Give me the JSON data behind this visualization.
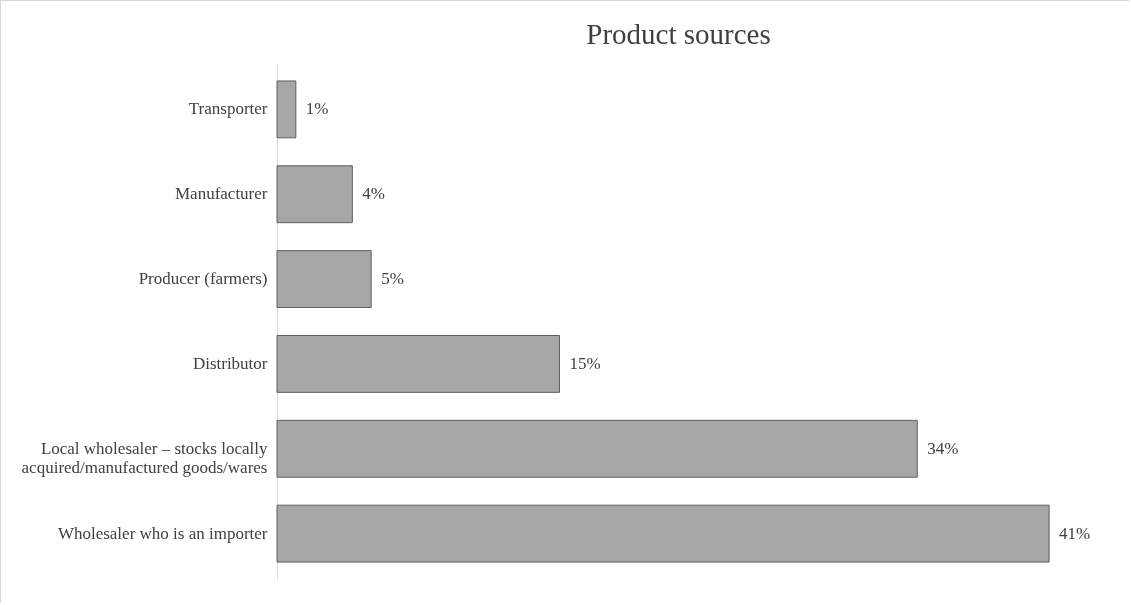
{
  "chart_data": {
    "type": "bar",
    "orientation": "horizontal",
    "title": "Product sources",
    "categories": [
      "Transporter",
      "Manufacturer",
      "Producer (farmers)",
      "Distributor",
      "Local wholesaler – stocks locally acquired/manufactured goods/wares",
      "Wholesaler who is an importer"
    ],
    "values": [
      1,
      4,
      5,
      15,
      34,
      41
    ],
    "value_labels": [
      "1%",
      "4%",
      "5%",
      "15%",
      "34%",
      "41%"
    ],
    "color": "#a6a6a6"
  }
}
